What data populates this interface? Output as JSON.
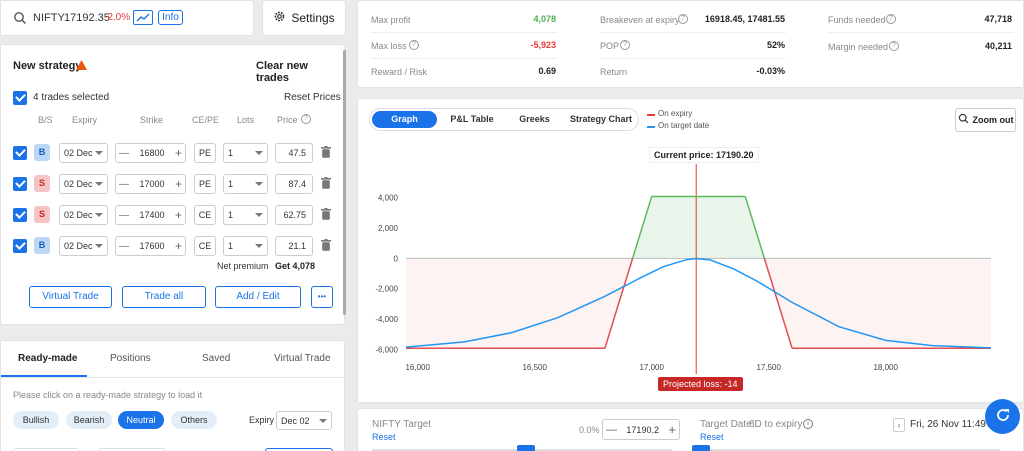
{
  "ticker": {
    "symbol": "NIFTY",
    "price": "17192.35",
    "change": "-2.0%",
    "info_label": "Info"
  },
  "settings_label": "Settings",
  "strategy": {
    "title": "New strategy",
    "clear_label": "Clear new trades",
    "selected_label": "4 trades selected",
    "reset_prices_label": "Reset Prices",
    "headers": {
      "bs": "B/S",
      "expiry": "Expiry",
      "strike": "Strike",
      "cepe": "CE/PE",
      "lots": "Lots",
      "price": "Price"
    },
    "trades": [
      {
        "side": "B",
        "expiry": "02 Dec",
        "strike": "16800",
        "type": "PE",
        "lots": "1",
        "price": "47.5"
      },
      {
        "side": "S",
        "expiry": "02 Dec",
        "strike": "17000",
        "type": "PE",
        "lots": "1",
        "price": "87.4"
      },
      {
        "side": "S",
        "expiry": "02 Dec",
        "strike": "17400",
        "type": "CE",
        "lots": "1",
        "price": "62.75"
      },
      {
        "side": "B",
        "expiry": "02 Dec",
        "strike": "17600",
        "type": "CE",
        "lots": "1",
        "price": "21.1"
      }
    ],
    "net_premium_label": "Net premium",
    "net_premium_value": "Get 4,078",
    "buttons": {
      "virtual": "Virtual Trade",
      "trade_all": "Trade all",
      "add_edit": "Add / Edit",
      "more": "•••"
    }
  },
  "readymade": {
    "tabs": [
      "Ready-made",
      "Positions",
      "Saved",
      "Virtual Trade"
    ],
    "hint": "Please click on a ready-made strategy to load it",
    "filters": [
      "Bullish",
      "Bearish",
      "Neutral",
      "Others"
    ],
    "expiry_label": "Expiry",
    "expiry_value": "Dec 02"
  },
  "stats": {
    "max_profit_label": "Max profit",
    "max_profit": "4,078",
    "max_loss_label": "Max loss",
    "max_loss": "-5,923",
    "rr_label": "Reward / Risk",
    "rr": "0.69",
    "breakeven_label": "Breakeven at expiry",
    "breakeven": "16918.45, 17481.55",
    "pop_label": "POP",
    "pop": "52%",
    "return_label": "Return",
    "return": "-0.03%",
    "funds_label": "Funds needed",
    "funds": "47,718",
    "margin_label": "Margin needed",
    "margin": "40,211"
  },
  "chart_tabs": [
    "Graph",
    "P&L Table",
    "Greeks",
    "Strategy Chart"
  ],
  "legend": {
    "expiry": "On expiry",
    "target": "On target date"
  },
  "zoom_label": "Zoom out",
  "current_price_label": "Current price: 17190.20",
  "projected_loss_label": "Projected loss: -14",
  "target": {
    "label": "NIFTY Target",
    "reset": "Reset",
    "pct": "0.0%",
    "value": "17190.2",
    "date_label": "Target Date:",
    "date_days": "6D to expiry",
    "date_reset": "Reset",
    "date_value": "Fri, 26 Nov 11:49 AM"
  },
  "colors": {
    "accent": "#1a73e8",
    "profit": "#4caf50",
    "loss": "#e53935",
    "target_line": "#2196f3"
  },
  "chart_data": {
    "type": "line",
    "xlim": [
      15950,
      18450
    ],
    "ylim": [
      -6300,
      4700
    ],
    "x_ticks": [
      16000,
      16500,
      17000,
      17500,
      18000
    ],
    "x_tick_labels": [
      "16,000",
      "16,500",
      "17,000",
      "17,500",
      "18,000"
    ],
    "y_ticks": [
      4000,
      2000,
      0,
      -2000,
      -4000,
      -6000
    ],
    "y_tick_labels": [
      "4,000",
      "2,000",
      "0",
      "-2,000",
      "-4,000",
      "-6,000"
    ],
    "current_price": 17190.2,
    "series": [
      {
        "name": "On expiry",
        "x": [
          15950,
          16800,
          17000,
          17400,
          17600,
          18450
        ],
        "y": [
          -5923,
          -5923,
          4078,
          4078,
          -5923,
          -5923
        ]
      },
      {
        "name": "On target date",
        "x": [
          15950,
          16200,
          16400,
          16600,
          16800,
          16950,
          17050,
          17150,
          17190,
          17250,
          17350,
          17450,
          17600,
          17800,
          18000,
          18200,
          18450
        ],
        "y": [
          -5850,
          -5500,
          -4900,
          -3900,
          -2500,
          -1300,
          -550,
          -80,
          -14,
          -100,
          -700,
          -1500,
          -2900,
          -4500,
          -5400,
          -5750,
          -5900
        ]
      }
    ]
  }
}
